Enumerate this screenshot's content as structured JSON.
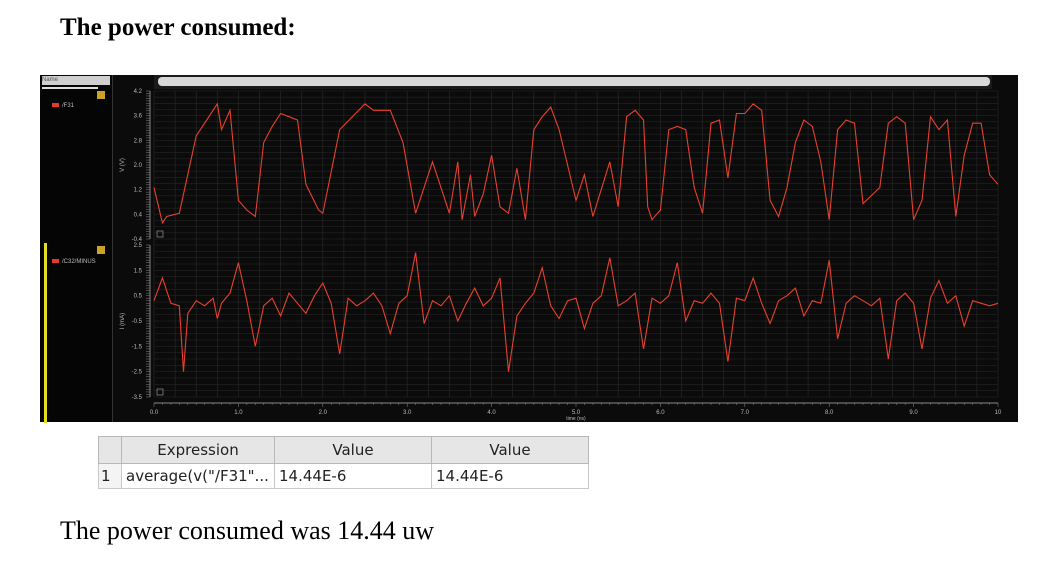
{
  "title": "The power consumed:",
  "result_text": "The power consumed was 14.44 uw",
  "legend": {
    "search_label": "Name",
    "signals": [
      "/F31",
      "/C32/MINUS"
    ]
  },
  "colors": {
    "trace": "#e8402e",
    "background": "#0b0b0b",
    "grid": "#2a2a2a"
  },
  "table": {
    "headers": [
      "Expression",
      "Value",
      "Value"
    ],
    "rows": [
      {
        "index": "1",
        "expression": "average(v(\"/F31\"...",
        "value1": "14.44E-6",
        "value2": "14.44E-6"
      }
    ]
  },
  "chart_data": [
    {
      "type": "line",
      "ylabel": "V (V)",
      "series": [
        {
          "name": "/F31",
          "x": [
            0.0,
            0.1,
            0.15,
            0.3,
            0.5,
            0.6,
            0.75,
            0.8,
            0.9,
            1.0,
            1.1,
            1.2,
            1.3,
            1.4,
            1.5,
            1.6,
            1.7,
            1.8,
            1.95,
            2.0,
            2.2,
            2.5,
            2.6,
            2.8,
            2.95,
            3.1,
            3.3,
            3.5,
            3.6,
            3.65,
            3.75,
            3.8,
            3.9,
            4.0,
            4.1,
            4.2,
            4.3,
            4.4,
            4.5,
            4.6,
            4.7,
            4.8,
            5.0,
            5.1,
            5.2,
            5.4,
            5.5,
            5.6,
            5.7,
            5.8,
            5.85,
            5.9,
            6.0,
            6.1,
            6.2,
            6.3,
            6.4,
            6.5,
            6.6,
            6.7,
            6.8,
            6.9,
            7.0,
            7.1,
            7.2,
            7.3,
            7.4,
            7.5,
            7.6,
            7.7,
            7.8,
            7.9,
            8.0,
            8.1,
            8.2,
            8.3,
            8.4,
            8.6,
            8.7,
            8.8,
            8.9,
            9.0,
            9.1,
            9.2,
            9.3,
            9.4,
            9.5,
            9.6,
            9.7,
            9.8,
            9.9,
            10.0
          ],
          "y": [
            1.2,
            0.1,
            0.3,
            0.4,
            2.8,
            3.2,
            3.8,
            3.0,
            3.6,
            0.8,
            0.5,
            0.3,
            2.6,
            3.1,
            3.5,
            3.4,
            3.3,
            1.3,
            0.5,
            0.4,
            3.0,
            3.8,
            3.6,
            3.6,
            2.6,
            0.4,
            2.0,
            0.4,
            2.0,
            0.2,
            1.6,
            0.3,
            1.0,
            2.2,
            0.6,
            0.4,
            1.8,
            0.2,
            3.0,
            3.4,
            3.7,
            3.0,
            0.8,
            1.6,
            0.3,
            2.0,
            0.6,
            3.4,
            3.6,
            3.3,
            0.6,
            0.2,
            0.5,
            3.0,
            3.1,
            3.0,
            1.2,
            0.4,
            3.2,
            3.3,
            1.5,
            3.5,
            3.5,
            3.8,
            3.6,
            0.8,
            0.3,
            1.2,
            2.6,
            3.3,
            3.1,
            2.0,
            0.2,
            3.0,
            3.3,
            3.2,
            0.7,
            1.2,
            3.2,
            3.4,
            3.2,
            0.2,
            0.8,
            3.4,
            3.0,
            3.3,
            0.3,
            2.2,
            3.2,
            3.2,
            1.6,
            1.3
          ]
        }
      ],
      "yticks": [
        "4.2",
        "3.6",
        "2.8",
        "2.0",
        "1.2",
        "0.4",
        "-0.4"
      ],
      "ylim": [
        -0.4,
        4.2
      ]
    },
    {
      "type": "line",
      "ylabel": "I (mA)",
      "series": [
        {
          "name": "/C32/MINUS",
          "x": [
            0.0,
            0.1,
            0.2,
            0.3,
            0.35,
            0.4,
            0.5,
            0.6,
            0.7,
            0.75,
            0.8,
            0.9,
            1.0,
            1.1,
            1.2,
            1.3,
            1.4,
            1.5,
            1.6,
            1.7,
            1.8,
            1.9,
            2.0,
            2.1,
            2.2,
            2.3,
            2.4,
            2.5,
            2.6,
            2.7,
            2.8,
            2.9,
            3.0,
            3.1,
            3.2,
            3.3,
            3.4,
            3.5,
            3.6,
            3.7,
            3.8,
            3.9,
            4.0,
            4.1,
            4.2,
            4.3,
            4.4,
            4.5,
            4.6,
            4.7,
            4.8,
            4.9,
            5.0,
            5.1,
            5.2,
            5.3,
            5.4,
            5.5,
            5.6,
            5.7,
            5.8,
            5.9,
            6.0,
            6.1,
            6.2,
            6.3,
            6.4,
            6.5,
            6.6,
            6.7,
            6.8,
            6.9,
            7.0,
            7.1,
            7.2,
            7.3,
            7.4,
            7.5,
            7.6,
            7.7,
            7.8,
            7.9,
            8.0,
            8.1,
            8.2,
            8.3,
            8.4,
            8.5,
            8.6,
            8.7,
            8.8,
            8.9,
            9.0,
            9.1,
            9.2,
            9.3,
            9.4,
            9.5,
            9.6,
            9.7,
            9.8,
            9.9,
            10.0
          ],
          "y": [
            0.3,
            1.2,
            0.2,
            0.1,
            -2.5,
            -0.2,
            0.3,
            0.1,
            0.4,
            -0.4,
            0.2,
            0.6,
            1.8,
            0.3,
            -1.5,
            0.1,
            0.4,
            -0.3,
            0.6,
            0.2,
            -0.2,
            0.5,
            1.0,
            0.2,
            -1.8,
            0.4,
            0.1,
            0.3,
            0.6,
            0.1,
            -1.0,
            0.2,
            0.5,
            2.2,
            -0.6,
            0.3,
            0.1,
            0.5,
            -0.5,
            0.2,
            0.8,
            0.1,
            0.4,
            1.2,
            -2.5,
            -0.3,
            0.2,
            0.6,
            1.6,
            0.1,
            -0.4,
            0.3,
            0.4,
            -0.8,
            0.2,
            0.5,
            2.0,
            0.1,
            0.3,
            0.6,
            -1.6,
            0.4,
            0.2,
            0.5,
            1.8,
            -0.5,
            0.3,
            0.2,
            0.6,
            0.2,
            -2.1,
            0.4,
            0.3,
            1.2,
            0.2,
            -0.6,
            0.3,
            0.5,
            0.8,
            -0.3,
            0.3,
            0.2,
            1.9,
            -1.2,
            0.2,
            0.5,
            0.3,
            0.1,
            0.4,
            -2.0,
            0.3,
            0.6,
            0.2,
            -1.6,
            0.4,
            1.1,
            0.2,
            0.5,
            -0.7,
            0.3,
            0.2,
            0.1,
            0.2
          ]
        }
      ],
      "yticks": [
        "2.5",
        "1.5",
        "0.5",
        "-0.5",
        "-1.5",
        "-2.5",
        "-3.5"
      ],
      "ylim": [
        -3.5,
        2.5
      ]
    }
  ],
  "xaxis": {
    "label": "time (ns)",
    "ticks": [
      "0.0",
      "1.0",
      "2.0",
      "3.0",
      "4.0",
      "5.0",
      "6.0",
      "7.0",
      "8.0",
      "9.0",
      "10"
    ]
  }
}
